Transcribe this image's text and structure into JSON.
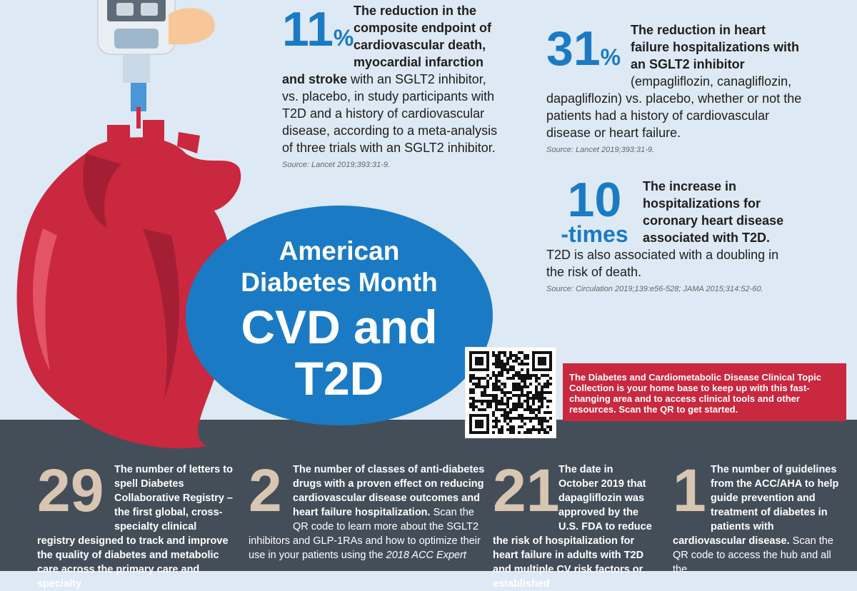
{
  "top_stats": [
    {
      "number": "11",
      "unit": "%",
      "bold": "The reduction in the composite endpoint of cardiovascular death, myocardial infarction and stroke",
      "text": "with an SGLT2 inhibitor, vs. placebo, in study participants with T2D and a history of cardiovascular disease, according to a meta-analysis of three trials with an SGLT2 inhibitor.",
      "source": "Source: Lancet 2019;393:31-9."
    },
    {
      "number": "31",
      "unit": "%",
      "bold": "The reduction in heart failure hospitalizations with an SGLT2 inhibitor",
      "text": "(empagliflozin, canagliflozin, dapagliflozin) vs. placebo, whether or not the patients had a history of cardiovascular disease or heart failure.",
      "source": "Source: Lancet 2019;393:31-9."
    },
    {
      "number": "10",
      "unit": "-times",
      "bold": "The increase in hospitalizations for coronary heart disease associated with T2D.",
      "text": "T2D is also associated with a doubling in the risk of death.",
      "source": "Source: Circulation 2019;139:e56-528; JAMA 2015;314:52-60."
    }
  ],
  "title": {
    "line1": "American Diabetes Month",
    "line2": "CVD and T2D"
  },
  "callout": "The Diabetes and Cardiometabolic Disease Clinical Topic Collection is your home base to keep up with this fast-changing area and to access clinical tools and other resources. Scan the QR to get started.",
  "bottom_stats": [
    {
      "number": "29",
      "bold": "The number of letters to spell Diabetes Collaborative Registry – the first global, cross-specialty clinical registry designed to track and improve the quality of diabetes and metabolic care across the primary care and specialty"
    },
    {
      "number": "2",
      "bold": "The number of classes of anti-diabetes drugs with a proven effect on reducing cardiovascular disease outcomes and heart failure hospitalization.",
      "text": "Scan the QR code to learn more about the SGLT2 inhibitors and GLP-1RAs and how to optimize their use in your patients using the",
      "italic": "2018 ACC Expert"
    },
    {
      "number": "21",
      "bold": "The date in October 2019 that dapagliflozin was approved by the U.S. FDA to reduce the risk of hospitalization for heart failure in adults with T2D and multiple CV risk factors or established"
    },
    {
      "number": "1",
      "bold": "The number of guidelines from the ACC/AHA to help guide prevention and treatment of diabetes in patients with cardiovascular disease.",
      "text": "Scan the QR code to access the hub and all the"
    }
  ]
}
